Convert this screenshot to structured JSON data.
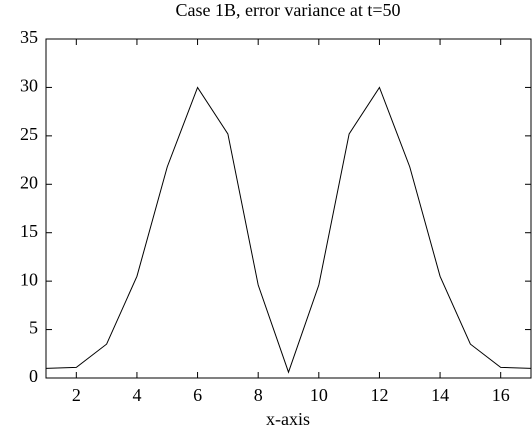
{
  "chart_data": {
    "type": "line",
    "title": "Case 1B, error variance at t=50",
    "xlabel": "x-axis",
    "x": [
      1,
      2,
      3,
      4,
      5,
      6,
      7,
      8,
      9,
      10,
      11,
      12,
      13,
      14,
      15,
      16,
      17
    ],
    "series": [
      {
        "name": "error variance",
        "color": "#000000",
        "values": [
          1.0,
          1.1,
          3.5,
          10.5,
          21.8,
          30.0,
          25.2,
          9.6,
          0.6,
          9.6,
          25.2,
          30.0,
          21.8,
          10.5,
          3.5,
          1.1,
          1.0
        ]
      }
    ],
    "xlim": [
      1,
      17
    ],
    "xticks": [
      2,
      4,
      6,
      8,
      10,
      12,
      14,
      16
    ],
    "ylim": [
      0,
      35
    ],
    "yticks": [
      0,
      5,
      10,
      15,
      20,
      25,
      30,
      35
    ],
    "grid": false
  }
}
